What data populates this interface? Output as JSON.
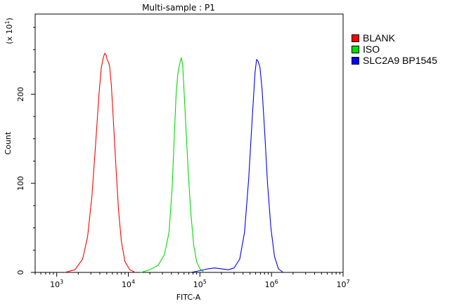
{
  "chart_data": {
    "type": "line",
    "title": "Multi-sample : P1",
    "xlabel": "FITC-A",
    "ylabel": "Count",
    "y_multiplier_label": "(x 10",
    "y_multiplier_exp": "1",
    "x_scale": "log",
    "xlim": [
      500,
      10000000
    ],
    "ylim": [
      0,
      290
    ],
    "x_ticks": [
      {
        "value": 1000,
        "base": "10",
        "exp": "3"
      },
      {
        "value": 10000,
        "base": "10",
        "exp": "4"
      },
      {
        "value": 100000,
        "base": "10",
        "exp": "5"
      },
      {
        "value": 1000000,
        "base": "10",
        "exp": "6"
      },
      {
        "value": 10000000,
        "base": "10",
        "exp": "7"
      }
    ],
    "y_ticks": [
      0,
      100,
      200
    ],
    "grid": false,
    "legend_position": "right",
    "series": [
      {
        "name": "BLANK",
        "color": "#ff0000",
        "x": [
          1300,
          1800,
          2300,
          2700,
          3100,
          3500,
          3900,
          4200,
          4500,
          4700,
          4900,
          5100,
          5300,
          5500,
          5800,
          6200,
          6700,
          7300,
          8000,
          9000,
          10500,
          12500
        ],
        "y": [
          0,
          3,
          15,
          40,
          85,
          145,
          200,
          230,
          242,
          246,
          244,
          238,
          236,
          230,
          210,
          170,
          120,
          70,
          35,
          12,
          3,
          0
        ]
      },
      {
        "name": "ISO",
        "color": "#00dd00",
        "x": [
          15000,
          20000,
          26000,
          32000,
          37000,
          41000,
          44000,
          46500,
          49000,
          51000,
          53000,
          55000,
          57500,
          60000,
          64000,
          69000,
          75000,
          82000,
          90000,
          100000,
          115000
        ],
        "y": [
          0,
          3,
          8,
          20,
          45,
          95,
          155,
          200,
          222,
          230,
          236,
          241,
          232,
          205,
          160,
          110,
          65,
          30,
          12,
          4,
          0
        ]
      },
      {
        "name": "SLC2A9 BP1545",
        "color": "#0000ff",
        "x": [
          75000,
          100000,
          130000,
          160000,
          200000,
          250000,
          300000,
          360000,
          420000,
          480000,
          540000,
          590000,
          620000,
          650000,
          690000,
          740000,
          800000,
          880000,
          980000,
          1100000,
          1250000,
          1450000
        ],
        "y": [
          0,
          2,
          4,
          5,
          4,
          3,
          5,
          15,
          45,
          105,
          175,
          225,
          239,
          237,
          230,
          205,
          160,
          100,
          50,
          18,
          4,
          0
        ]
      }
    ]
  }
}
